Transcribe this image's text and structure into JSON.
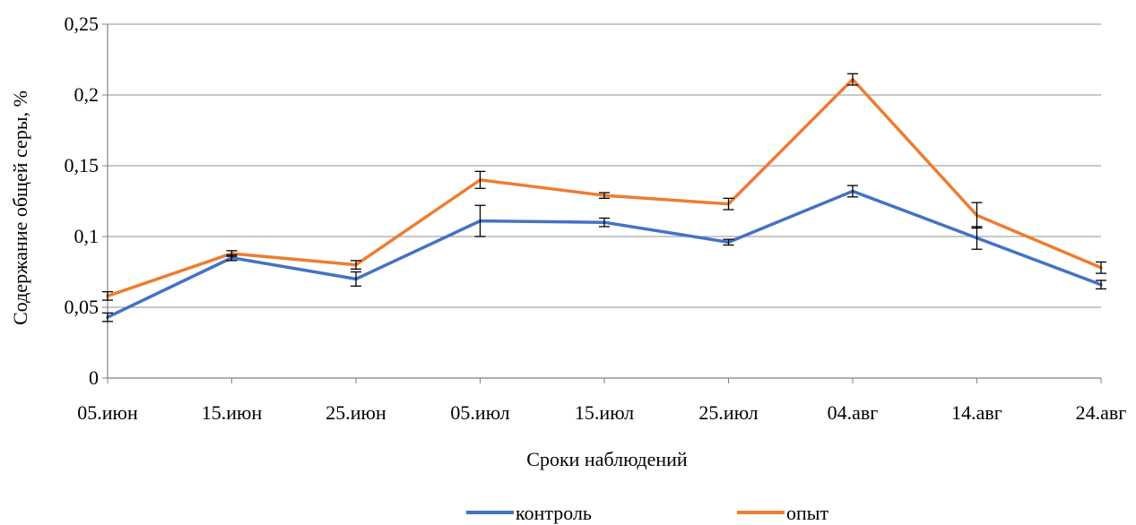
{
  "chart_data": {
    "type": "line",
    "title": "",
    "xlabel": "Сроки наблюдений",
    "ylabel": "Содержание общей серы, %",
    "categories": [
      "05.июн",
      "15.июн",
      "25.июн",
      "05.июл",
      "15.июл",
      "25.июл",
      "04.авг",
      "14.авг",
      "24.авг"
    ],
    "y_tick_labels": [
      "0",
      "0,05",
      "0,1",
      "0,15",
      "0,2",
      "0,25"
    ],
    "y_ticks": [
      0,
      0.05,
      0.1,
      0.15,
      0.2,
      0.25
    ],
    "ylim": [
      0,
      0.25
    ],
    "grid": true,
    "legend_position": "bottom",
    "series": [
      {
        "name": "контроль",
        "color": "#4472C4",
        "values": [
          0.043,
          0.085,
          0.07,
          0.111,
          0.11,
          0.096,
          0.132,
          0.099,
          0.066
        ],
        "errors": [
          0.003,
          0.002,
          0.005,
          0.011,
          0.003,
          0.002,
          0.004,
          0.008,
          0.003
        ]
      },
      {
        "name": "опыт",
        "color": "#ED7D31",
        "values": [
          0.058,
          0.088,
          0.08,
          0.14,
          0.129,
          0.123,
          0.211,
          0.115,
          0.078
        ],
        "errors": [
          0.003,
          0.002,
          0.003,
          0.006,
          0.002,
          0.004,
          0.004,
          0.009,
          0.004
        ]
      }
    ]
  }
}
